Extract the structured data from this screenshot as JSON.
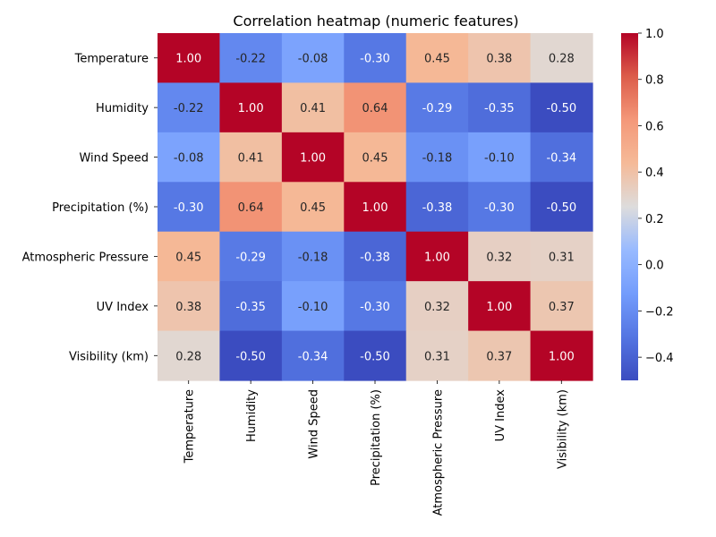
{
  "chart_data": {
    "type": "heatmap",
    "title": "Correlation heatmap (numeric features)",
    "xlabel": "",
    "ylabel": "",
    "labels": [
      "Temperature",
      "Humidity",
      "Wind Speed",
      "Precipitation (%)",
      "Atmospheric Pressure",
      "UV Index",
      "Visibility (km)"
    ],
    "matrix": [
      [
        1.0,
        -0.22,
        -0.08,
        -0.3,
        0.45,
        0.38,
        0.28
      ],
      [
        -0.22,
        1.0,
        0.41,
        0.64,
        -0.29,
        -0.35,
        -0.5
      ],
      [
        -0.08,
        0.41,
        1.0,
        0.45,
        -0.18,
        -0.1,
        -0.34
      ],
      [
        -0.3,
        0.64,
        0.45,
        1.0,
        -0.38,
        -0.3,
        -0.5
      ],
      [
        0.45,
        -0.29,
        -0.18,
        -0.38,
        1.0,
        0.32,
        0.31
      ],
      [
        0.38,
        -0.35,
        -0.1,
        -0.3,
        0.32,
        1.0,
        0.37
      ],
      [
        0.28,
        -0.5,
        -0.34,
        -0.5,
        0.31,
        0.37,
        1.0
      ]
    ],
    "colorscale": "coolwarm",
    "vmin": -0.5,
    "vmax": 1.0,
    "colorbar_ticks": [
      "1.0",
      "0.8",
      "0.6",
      "0.4",
      "0.2",
      "0.0",
      "−0.2",
      "−0.4"
    ],
    "colorbar_tick_values": [
      1.0,
      0.8,
      0.6,
      0.4,
      0.2,
      0.0,
      -0.2,
      -0.4
    ],
    "annotations": true,
    "grid": false,
    "legend": "colorbar-right"
  }
}
